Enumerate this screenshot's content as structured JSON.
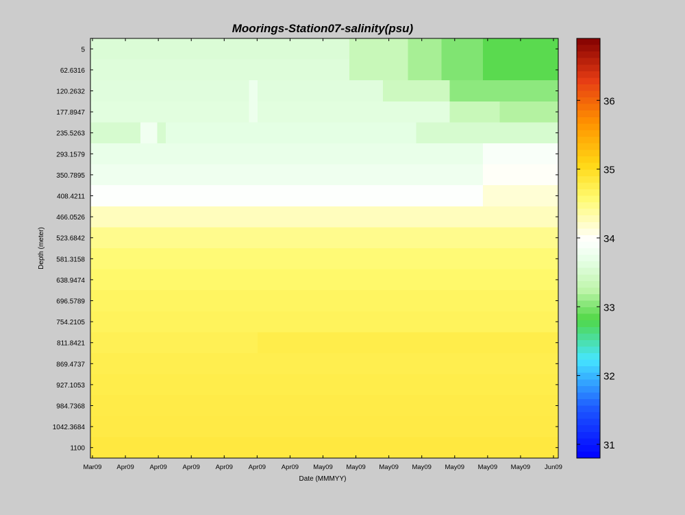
{
  "chart_data": {
    "type": "heatmap",
    "title": "Moorings-Station07-salinity(psu)",
    "xlabel": "Date (MMMYY)",
    "ylabel": "Depth (meter)",
    "x_tick_labels": [
      "Mar09",
      "Apr09",
      "Apr09",
      "Apr09",
      "Apr09",
      "Apr09",
      "Apr09",
      "May09",
      "May09",
      "May09",
      "May09",
      "May09",
      "May09",
      "May09",
      "Jun09"
    ],
    "y_tick_labels": [
      "5",
      "62.6316",
      "120.2632",
      "177.8947",
      "235.5263",
      "293.1579",
      "350.7895",
      "408.4211",
      "466.0526",
      "523.6842",
      "581.3158",
      "638.9474",
      "696.5789",
      "754.2105",
      "811.8421",
      "869.4737",
      "927.1053",
      "984.7368",
      "1042.3684",
      "1100"
    ],
    "depths": [
      5,
      62.6316,
      120.2632,
      177.8947,
      235.5263,
      293.1579,
      350.7895,
      408.4211,
      466.0526,
      523.6842,
      581.3158,
      638.9474,
      696.5789,
      754.2105,
      811.8421,
      869.4737,
      927.1053,
      984.7368,
      1042.3684,
      1100
    ],
    "colorbar": {
      "min": 30.8,
      "max": 36.9,
      "ticks": [
        31,
        32,
        33,
        34,
        35,
        36
      ],
      "tick_labels": [
        "31",
        "32",
        "33",
        "34",
        "35",
        "36"
      ]
    },
    "time_steps": 56,
    "salinity_profile": [
      33.55,
      33.58,
      33.6,
      33.62,
      33.65,
      33.7,
      33.78,
      33.95,
      34.25,
      34.45,
      34.55,
      34.6,
      34.65,
      34.68,
      34.72,
      34.75,
      34.77,
      34.79,
      34.8,
      34.83
    ],
    "features": [
      {
        "depth_index": 0,
        "from_step": 31,
        "to_step": 38,
        "value": 33.35
      },
      {
        "depth_index": 0,
        "from_step": 38,
        "to_step": 42,
        "value": 33.15
      },
      {
        "depth_index": 0,
        "from_step": 42,
        "to_step": 47,
        "value": 33.0
      },
      {
        "depth_index": 0,
        "from_step": 47,
        "to_step": 56,
        "value": 32.85
      },
      {
        "depth_index": 1,
        "from_step": 31,
        "to_step": 38,
        "value": 33.35
      },
      {
        "depth_index": 1,
        "from_step": 38,
        "to_step": 42,
        "value": 33.15
      },
      {
        "depth_index": 1,
        "from_step": 42,
        "to_step": 47,
        "value": 33.0
      },
      {
        "depth_index": 1,
        "from_step": 47,
        "to_step": 56,
        "value": 32.85
      },
      {
        "depth_index": 2,
        "from_step": 19,
        "to_step": 20,
        "value": 33.75
      },
      {
        "depth_index": 2,
        "from_step": 35,
        "to_step": 43,
        "value": 33.4
      },
      {
        "depth_index": 2,
        "from_step": 43,
        "to_step": 56,
        "value": 33.05
      },
      {
        "depth_index": 3,
        "from_step": 19,
        "to_step": 20,
        "value": 33.75
      },
      {
        "depth_index": 3,
        "from_step": 43,
        "to_step": 49,
        "value": 33.35
      },
      {
        "depth_index": 3,
        "from_step": 49,
        "to_step": 56,
        "value": 33.2
      },
      {
        "depth_index": 4,
        "from_step": 0,
        "to_step": 6,
        "value": 33.5
      },
      {
        "depth_index": 4,
        "from_step": 6,
        "to_step": 8,
        "value": 33.8
      },
      {
        "depth_index": 4,
        "from_step": 8,
        "to_step": 9,
        "value": 33.5
      },
      {
        "depth_index": 4,
        "from_step": 39,
        "to_step": 56,
        "value": 33.5
      },
      {
        "depth_index": 5,
        "from_step": 47,
        "to_step": 56,
        "value": 33.9
      },
      {
        "depth_index": 6,
        "from_step": 47,
        "to_step": 56,
        "value": 34.0
      },
      {
        "depth_index": 7,
        "from_step": 47,
        "to_step": 56,
        "value": 34.15
      },
      {
        "depth_index": 14,
        "from_step": 20,
        "to_step": 56,
        "value": 34.77
      }
    ]
  }
}
